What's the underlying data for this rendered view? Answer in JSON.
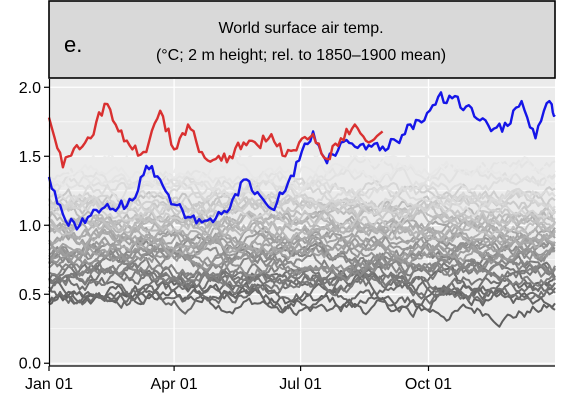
{
  "panel": {
    "letter": "e.",
    "title_line1": "World surface air temp.",
    "title_line2": "(°C; 2 m height; rel. to 1850–1900 mean)"
  },
  "chart_data": {
    "type": "line",
    "title": "World surface air temp.",
    "subtitle": "(°C; 2 m height; rel. to 1850–1900 mean)",
    "xlabel": "",
    "ylabel": "",
    "x_domain": [
      "Jan 01",
      "Dec 31"
    ],
    "x_tick_labels": [
      "Jan 01",
      "Apr 01",
      "Jul 01",
      "Oct 01"
    ],
    "x_tick_days": [
      0,
      90,
      181,
      273
    ],
    "ylim": [
      -0.02,
      2.06
    ],
    "y_ticks": [
      0.0,
      0.5,
      1.0,
      1.5,
      2.0
    ],
    "y_tick_labels": [
      "0.0",
      "0.5",
      "1.0",
      "1.5",
      "2.0"
    ],
    "grid": true,
    "legend": "none",
    "colors": {
      "highlight_blue": "#1515e8",
      "highlight_red": "#d93030",
      "panel_background": "#ebebeb",
      "grid": "#ffffff",
      "header_fill": "#d9d9d9"
    },
    "series": [
      {
        "color": "#1515e8",
        "x_days": [
          0,
          10,
          20,
          30,
          40,
          50,
          60,
          70,
          80,
          90,
          100,
          110,
          120,
          130,
          140,
          150,
          160,
          170,
          180,
          190,
          200,
          210,
          220,
          230,
          240,
          250,
          260,
          270,
          280,
          290,
          300,
          310,
          320,
          330,
          340,
          350,
          360,
          364
        ],
        "values": [
          1.35,
          1.08,
          0.97,
          1.07,
          1.13,
          1.13,
          1.18,
          1.43,
          1.33,
          1.15,
          1.06,
          1.02,
          1.05,
          1.12,
          1.33,
          1.24,
          1.12,
          1.25,
          1.47,
          1.68,
          1.45,
          1.6,
          1.57,
          1.58,
          1.57,
          1.61,
          1.73,
          1.76,
          1.93,
          1.92,
          1.86,
          1.76,
          1.7,
          1.72,
          1.9,
          1.63,
          1.9,
          1.8
        ]
      },
      {
        "color": "#d93030",
        "x_days": [
          0,
          10,
          20,
          30,
          40,
          50,
          60,
          70,
          80,
          90,
          100,
          110,
          120,
          130,
          140,
          150,
          160,
          170,
          180,
          190,
          200,
          210,
          220,
          230,
          240
        ],
        "values": [
          1.78,
          1.42,
          1.58,
          1.63,
          1.88,
          1.68,
          1.55,
          1.53,
          1.83,
          1.55,
          1.73,
          1.53,
          1.48,
          1.5,
          1.6,
          1.58,
          1.66,
          1.5,
          1.6,
          1.66,
          1.48,
          1.63,
          1.73,
          1.6,
          1.68
        ]
      }
    ],
    "background_series": {
      "count": 44,
      "description": "Earlier years drawn as grey lines, darker shades lower",
      "x_days": [
        0,
        30,
        60,
        90,
        120,
        150,
        180,
        210,
        240,
        270,
        300,
        330,
        364
      ],
      "baselines": [
        0.42,
        0.46,
        0.5,
        0.52,
        0.55,
        0.58,
        0.6,
        0.62,
        0.64,
        0.66,
        0.68,
        0.7,
        0.72,
        0.74,
        0.76,
        0.78,
        0.8,
        0.82,
        0.84,
        0.86,
        0.88,
        0.9,
        0.92,
        0.94,
        0.96,
        0.98,
        1.0,
        1.02,
        1.04,
        1.06,
        1.08,
        1.1,
        1.12,
        1.14,
        1.16,
        1.18,
        1.2,
        1.22,
        1.25,
        1.28,
        1.31,
        1.35,
        1.4,
        1.45
      ]
    }
  }
}
